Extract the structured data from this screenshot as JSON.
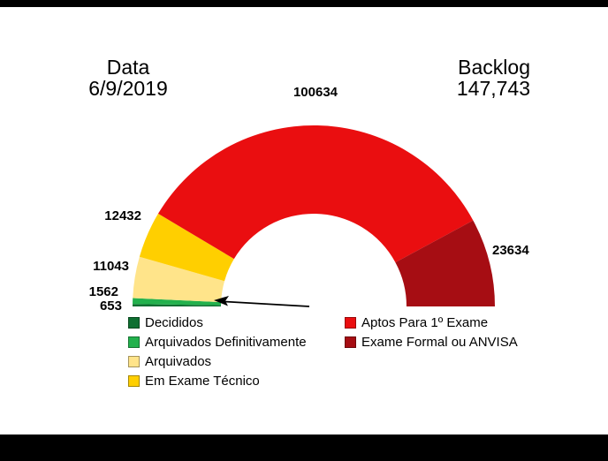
{
  "header": {
    "date_label": "Data",
    "date_value": "6/9/2019",
    "backlog_label": "Backlog",
    "backlog_value": "147,743"
  },
  "chart_data": {
    "type": "pie",
    "subtype": "half-donut-gauge",
    "title": "Backlog 147,743 em 6/9/2019",
    "start_angle_deg": 180,
    "end_angle_deg": 0,
    "legend_position": "bottom",
    "slices": [
      {
        "key": "decididos",
        "label": "Decididos",
        "value": 653,
        "value_label": "653",
        "color": "#0e6f31"
      },
      {
        "key": "arquivados-definitivamente",
        "label": "Arquivados Definitivamente",
        "value": 1562,
        "value_label": "1562",
        "color": "#23b14d"
      },
      {
        "key": "arquivados",
        "label": "Arquivados",
        "value": 11043,
        "value_label": "11043",
        "color": "#ffe48a"
      },
      {
        "key": "em-exame-tecnico",
        "label": "Em Exame Técnico",
        "value": 12432,
        "value_label": "12432",
        "color": "#ffcf00"
      },
      {
        "key": "aptos-para-1-exame",
        "label": "Aptos Para 1º Exame",
        "value": 100634,
        "value_label": "100634",
        "color": "#ea0e10"
      },
      {
        "key": "exame-formal-ou-anvisa",
        "label": "Exame Formal ou ANVISA",
        "value": 23634,
        "value_label": "23634",
        "color": "#a60d13"
      }
    ]
  },
  "legend": {
    "columns": [
      {
        "items": [
          {
            "key": "decididos",
            "label": "Decididos",
            "color": "#0e6f31"
          },
          {
            "key": "arquivados-definitivamente",
            "label": "Arquivados Definitivamente",
            "color": "#23b14d"
          },
          {
            "key": "arquivados",
            "label": "Arquivados",
            "color": "#ffe48a"
          },
          {
            "key": "em-exame-tecnico",
            "label": "Em Exame Técnico",
            "color": "#ffcf00"
          }
        ]
      },
      {
        "items": [
          {
            "key": "aptos-para-1-exame",
            "label": "Aptos Para 1º Exame",
            "color": "#ea0e10"
          },
          {
            "key": "exame-formal-ou-anvisa",
            "label": "Exame Formal ou ANVISA",
            "color": "#a60d13"
          }
        ]
      }
    ]
  }
}
